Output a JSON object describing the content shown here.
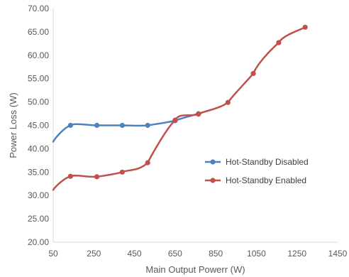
{
  "chart_data": {
    "type": "line",
    "title": "",
    "xlabel": "Main Output Powerr (W)",
    "ylabel": "Power Loss (W)",
    "xlim": [
      50,
      1450
    ],
    "ylim": [
      20,
      70
    ],
    "x_ticks": [
      50,
      250,
      450,
      650,
      850,
      1050,
      1250,
      1450
    ],
    "y_ticks": [
      "20.00",
      "25.00",
      "30.00",
      "35.00",
      "40.00",
      "45.00",
      "50.00",
      "55.00",
      "60.00",
      "65.00",
      "70.00"
    ],
    "grid": false,
    "legend_position": "center-right",
    "series": [
      {
        "name": "Hot-Standby Disabled",
        "color": "#4F81BD",
        "line_start": [
          50,
          41.5
        ],
        "points": [
          [
            135,
            45.0
          ],
          [
            265,
            45.0
          ],
          [
            390,
            45.0
          ],
          [
            515,
            45.0
          ],
          [
            650,
            46.0
          ],
          [
            765,
            47.5
          ]
        ]
      },
      {
        "name": "Hot-Standby Enabled",
        "color": "#C0504D",
        "line_start": [
          50,
          31.2
        ],
        "points": [
          [
            135,
            34.1
          ],
          [
            265,
            34.0
          ],
          [
            390,
            35.0
          ],
          [
            515,
            37.0
          ],
          [
            650,
            46.1
          ],
          [
            765,
            47.4
          ],
          [
            910,
            49.9
          ],
          [
            1035,
            56.1
          ],
          [
            1160,
            62.7
          ],
          [
            1290,
            66.0
          ]
        ]
      }
    ]
  }
}
